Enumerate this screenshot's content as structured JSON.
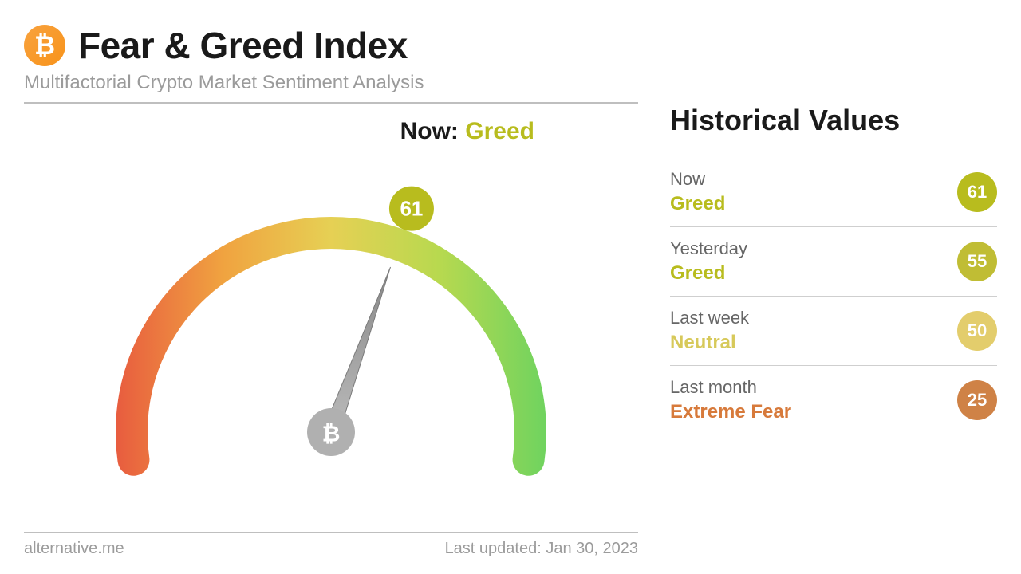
{
  "header": {
    "title": "Fear & Greed Index",
    "subtitle": "Multifactorial Crypto Market Sentiment Analysis",
    "logo_bg": "#f7931a"
  },
  "gauge": {
    "type": "gauge",
    "value": 61,
    "min": 0,
    "max": 100,
    "now_label": "Now:",
    "now_status": "Greed",
    "now_status_color": "#b8bc1e",
    "badge_bg": "#b8bc1e",
    "arc": {
      "start_deg": 180,
      "end_deg": 0,
      "width": 40,
      "colors": [
        "#e85c3f",
        "#f0a340",
        "#e6d054",
        "#b8d94f",
        "#6fd35f"
      ]
    },
    "needle_color": "#9a9a9a",
    "hub_color": "#b0b0b0"
  },
  "footer": {
    "source": "alternative.me",
    "updated_label": "Last updated:",
    "updated_value": "Jan 30, 2023"
  },
  "historical": {
    "title": "Historical Values",
    "items": [
      {
        "period": "Now",
        "status": "Greed",
        "value": 61,
        "status_color": "#b8bc1e",
        "badge_color": "#b8bc1e"
      },
      {
        "period": "Yesterday",
        "status": "Greed",
        "value": 55,
        "status_color": "#b8bc1e",
        "badge_color": "#c0bd34"
      },
      {
        "period": "Last week",
        "status": "Neutral",
        "value": 50,
        "status_color": "#d7c95a",
        "badge_color": "#e3cd6c"
      },
      {
        "period": "Last month",
        "status": "Extreme Fear",
        "value": 25,
        "status_color": "#d77a3b",
        "badge_color": "#cf8246"
      }
    ]
  }
}
